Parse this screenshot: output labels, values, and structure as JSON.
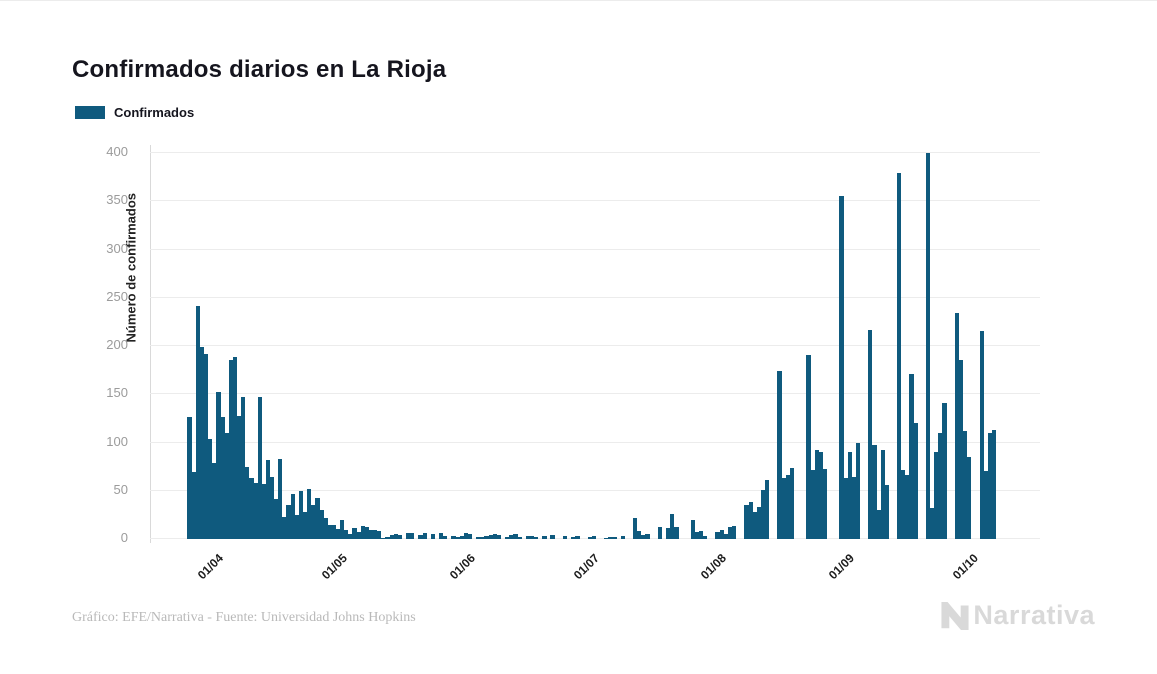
{
  "page": {
    "title": "Confirmados diarios en La Rioja"
  },
  "legend": {
    "label": "Confirmados"
  },
  "y_axis": {
    "label": "Número de confirmados"
  },
  "footer": {
    "credit": "Gráfico: EFE/Narrativa - Fuente: Universidad Johns Hopkins",
    "brand": "Narrativa"
  },
  "colors": {
    "bar": "#0f5a7e",
    "grid": "#ececec",
    "axis_line": "#d9d9d9",
    "tick_text": "#9b9b9b",
    "title_text": "#15151e",
    "footer_text": "#b9b9b9",
    "logo": "#d9d9d9"
  },
  "chart_data": {
    "type": "bar",
    "title": "Confirmados diarios en La Rioja",
    "series_name": "Confirmados",
    "xlabel": "",
    "ylabel": "Número de confirmados",
    "ylim": [
      0,
      400
    ],
    "y_ticks": [
      0,
      50,
      100,
      150,
      200,
      250,
      300,
      350,
      400
    ],
    "grid": true,
    "legend_position": "top-left",
    "bar_color": "#0f5a7e",
    "x_tick_labels": [
      "01/04",
      "01/05",
      "01/06",
      "01/07",
      "01/08",
      "01/09",
      "01/10"
    ],
    "x_tick_indices": [
      5,
      35,
      66,
      96,
      127,
      158,
      188
    ],
    "values": [
      126,
      69,
      241,
      199,
      192,
      104,
      79,
      152,
      126,
      110,
      186,
      189,
      128,
      147,
      75,
      63,
      58,
      147,
      57,
      82,
      64,
      42,
      83,
      23,
      35,
      47,
      25,
      50,
      28,
      52,
      35,
      43,
      30,
      22,
      15,
      15,
      10,
      20,
      9,
      5,
      11,
      7,
      14,
      13,
      9,
      9,
      8,
      1,
      2,
      4,
      5,
      4,
      0,
      6,
      6,
      0,
      4,
      6,
      0,
      5,
      0,
      6,
      3,
      0,
      3,
      2,
      3,
      6,
      5,
      0,
      2,
      2,
      3,
      4,
      5,
      4,
      0,
      2,
      4,
      5,
      2,
      0,
      3,
      3,
      2,
      0,
      3,
      0,
      4,
      0,
      0,
      3,
      0,
      2,
      3,
      0,
      0,
      2,
      3,
      0,
      0,
      1,
      2,
      2,
      0,
      3,
      0,
      0,
      22,
      8,
      4,
      5,
      0,
      0,
      12,
      0,
      11,
      26,
      13,
      0,
      0,
      0,
      20,
      7,
      8,
      3,
      0,
      0,
      7,
      9,
      5,
      12,
      14,
      0,
      0,
      35,
      38,
      28,
      33,
      51,
      61,
      0,
      0,
      174,
      63,
      66,
      74,
      0,
      0,
      0,
      191,
      72,
      92,
      90,
      73,
      0,
      0,
      0,
      355,
      63,
      90,
      64,
      100,
      0,
      0,
      217,
      97,
      30,
      92,
      56,
      0,
      0,
      379,
      72,
      66,
      171,
      120,
      0,
      0,
      400,
      32,
      90,
      110,
      141,
      0,
      0,
      234,
      186,
      112,
      85,
      0,
      0,
      216,
      71,
      110,
      113
    ]
  }
}
